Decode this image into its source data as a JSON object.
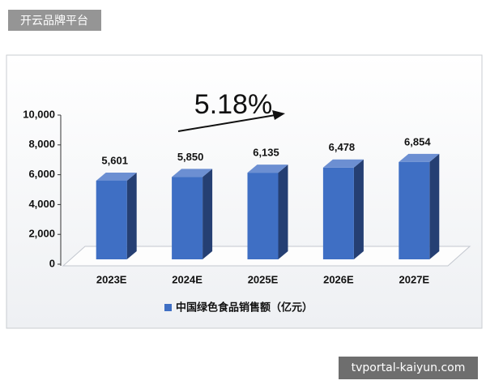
{
  "chart_data": {
    "type": "bar3d",
    "annotation": "5.18%",
    "categories": [
      "2023E",
      "2024E",
      "2025E",
      "2026E",
      "2027E"
    ],
    "series": [
      {
        "name": "中国绿色食品销售额（亿元）",
        "color": "#3f6fc4",
        "values": [
          5601,
          5850,
          6135,
          6478,
          6854
        ],
        "value_labels": [
          "5,601",
          "5,850",
          "6,135",
          "6,478",
          "6,854"
        ]
      }
    ],
    "ylim": [
      0,
      10000
    ],
    "yticks": [
      0,
      {
        "value": 2000,
        "label": "2,000"
      },
      {
        "value": 4000,
        "label": "4,000"
      },
      {
        "value": 6000,
        "label": "6,000"
      },
      {
        "value": 8000,
        "label": "8,000"
      },
      {
        "value": 10000,
        "label": "10,000"
      }
    ],
    "legend": "bottom"
  },
  "overlay": {
    "top_left": "开云品牌平台",
    "bottom_right": "tvportal-kaiyun.com"
  }
}
